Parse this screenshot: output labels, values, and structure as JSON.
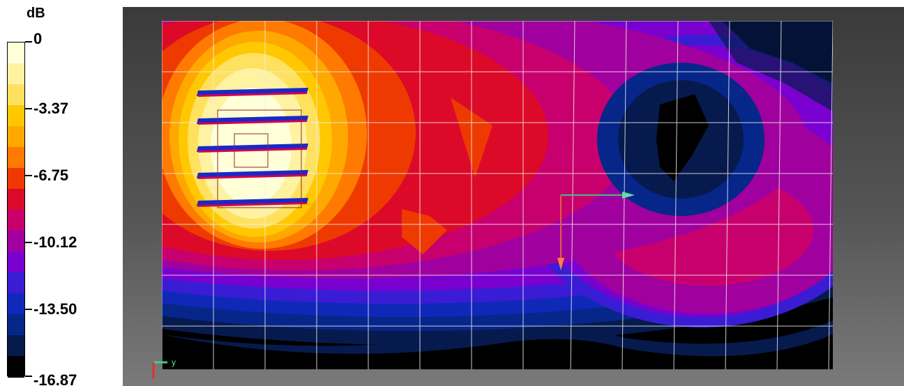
{
  "chart_data": {
    "type": "heatmap",
    "title": "",
    "xlabel": "",
    "ylabel": "",
    "colorbar": {
      "unit": "dB",
      "range": [
        -16.87,
        0
      ],
      "tick_values": [
        0,
        -3.37,
        -6.75,
        -10.12,
        -13.5,
        -16.87
      ],
      "tick_labels": [
        "0",
        "-3.37",
        "-6.75",
        "-10.12",
        "-13.50",
        "-16.87"
      ],
      "colors_top_to_bottom": [
        "#ffffd8",
        "#fff2a0",
        "#ffe160",
        "#ffc800",
        "#ffa800",
        "#ff7a00",
        "#ee3a00",
        "#dc0a28",
        "#c8006e",
        "#a0009e",
        "#7a00d0",
        "#3a1cd4",
        "#1028b8",
        "#06268a",
        "#061a4e",
        "#000000"
      ]
    },
    "axis_triad": {
      "labels": [
        "y"
      ]
    },
    "grid": true
  }
}
